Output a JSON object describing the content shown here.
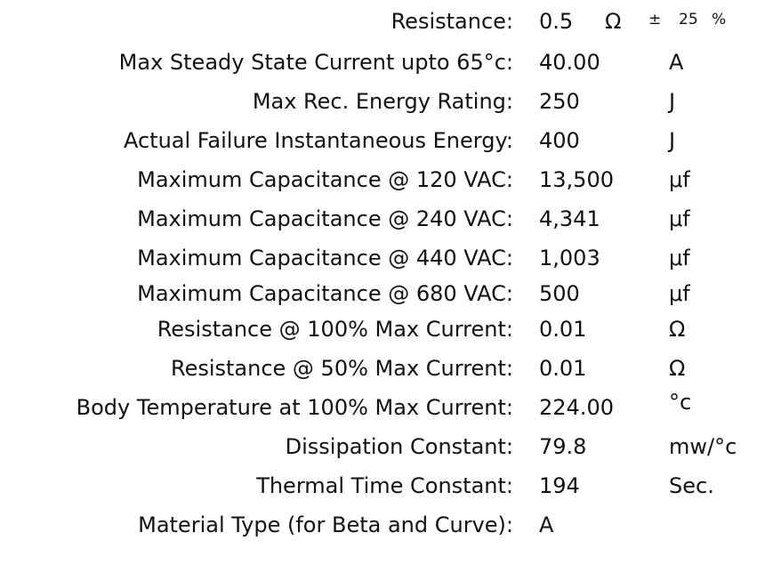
{
  "specs": [
    {
      "label": "Resistance:",
      "value": "0.5",
      "unit": "Ω",
      "tolerance_sign": "±",
      "tolerance_value": "25",
      "tolerance_unit": "%"
    },
    {
      "label": "Max Steady State Current upto 65°c:",
      "value": "40.00",
      "unit": "A"
    },
    {
      "label": "Max Rec. Energy Rating:",
      "value": "250",
      "unit": "J"
    },
    {
      "label": "Actual Failure Instantaneous Energy:",
      "value": "400",
      "unit": "J"
    },
    {
      "label": "Maximum Capacitance @ 120 VAC:",
      "value": "13,500",
      "unit": "μf"
    },
    {
      "label": "Maximum Capacitance @ 240 VAC:",
      "value": "4,341",
      "unit": "μf"
    },
    {
      "label": "Maximum Capacitance @ 440 VAC:",
      "value": "1,003",
      "unit": "μf"
    },
    {
      "label": "Maximum Capacitance @ 680 VAC:",
      "value": "500",
      "unit": "μf"
    },
    {
      "label": "Resistance @ 100% Max Current:",
      "value": "0.01",
      "unit": "Ω"
    },
    {
      "label": "Resistance @ 50% Max Current:",
      "value": "0.01",
      "unit": "Ω"
    },
    {
      "label": "Body Temperature at 100% Max Current:",
      "value": "224.00",
      "unit": "°c"
    },
    {
      "label": "Dissipation Constant:",
      "value": "79.8",
      "unit": "mw/°c"
    },
    {
      "label": "Thermal Time Constant:",
      "value": "194",
      "unit": "Sec."
    },
    {
      "label": "Material Type (for Beta and Curve):",
      "value": "A",
      "unit": ""
    }
  ]
}
